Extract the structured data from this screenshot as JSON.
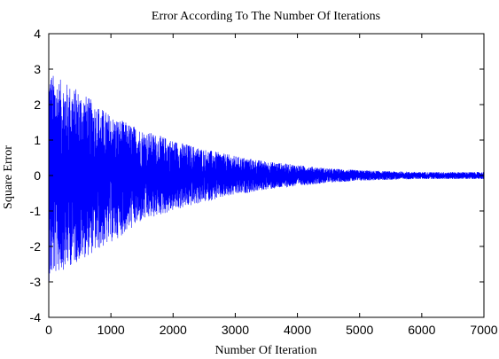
{
  "chart_data": {
    "type": "line",
    "title": "Error According To The Number Of Iterations",
    "xlabel": "Number Of Iteration",
    "ylabel": "Square Error",
    "xlim": [
      0,
      7000
    ],
    "ylim": [
      -4,
      4
    ],
    "xticks": [
      "0",
      "1000",
      "2000",
      "3000",
      "4000",
      "5000",
      "6000",
      "7000"
    ],
    "yticks": [
      "4",
      "3",
      "2",
      "1",
      "0",
      "-1",
      "-2",
      "-3",
      "-4"
    ],
    "grid": false,
    "series": [
      {
        "color": "#0000ff",
        "envelope": {
          "x": [
            0,
            100,
            500,
            1000,
            1500,
            2000,
            2500,
            3000,
            3500,
            4000,
            4500,
            5000,
            5500,
            6000,
            6500,
            7000
          ],
          "upper": [
            3.0,
            2.8,
            2.4,
            1.7,
            1.3,
            1.0,
            0.75,
            0.55,
            0.4,
            0.3,
            0.2,
            0.15,
            0.12,
            0.1,
            0.1,
            0.1
          ],
          "lower": [
            -3.0,
            -2.8,
            -2.4,
            -1.9,
            -1.3,
            -1.0,
            -0.75,
            -0.55,
            -0.4,
            -0.3,
            -0.2,
            -0.15,
            -0.12,
            -0.1,
            -0.1,
            -0.1
          ]
        }
      }
    ]
  }
}
